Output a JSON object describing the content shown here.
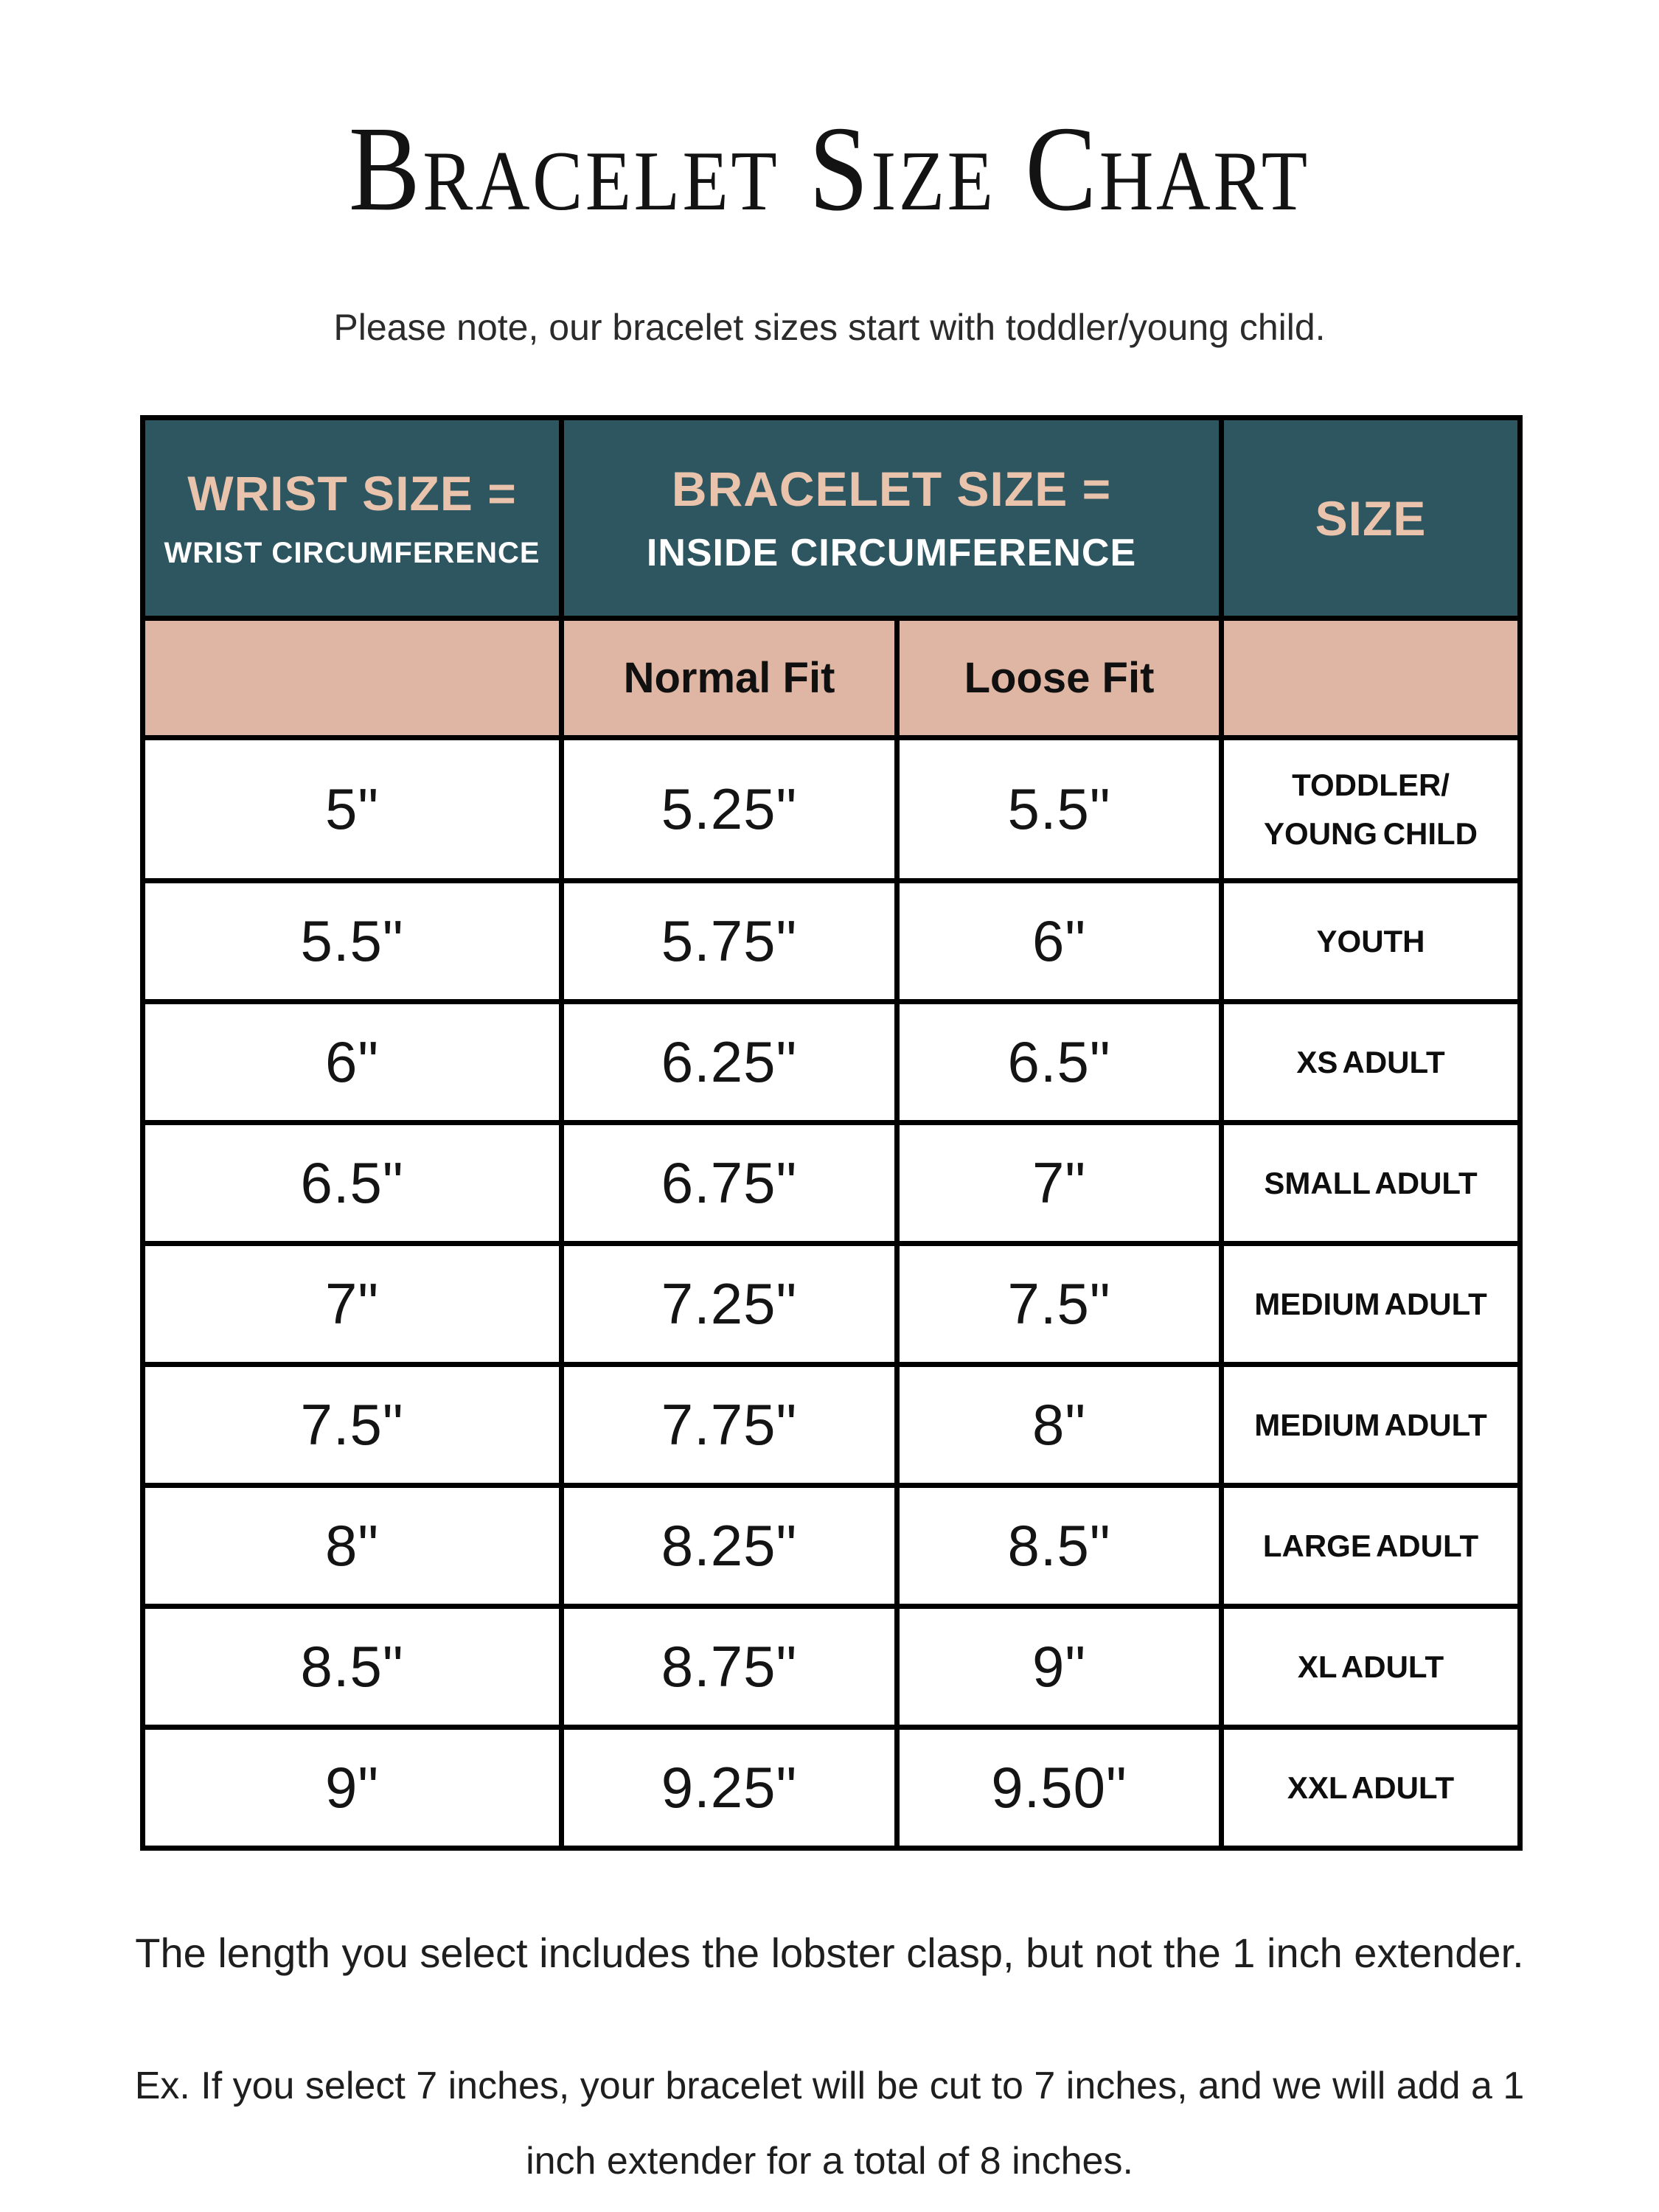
{
  "page": {
    "title": "Bracelet Size Chart",
    "subtitle": "Please note, our bracelet sizes start with toddler/young child.",
    "footnote1": "The length you select includes the lobster clasp, but not the 1 inch extender.",
    "footnote2_line1": "Ex. If you select 7 inches, your bracelet will be cut to 7 inches, and we will add a 1",
    "footnote2_line2": "inch extender for a total of 8 inches."
  },
  "colors": {
    "header_bg": "#2d5660",
    "subheader_bg": "#dfb5a3",
    "header_accent_text": "#eac3ad",
    "header_secondary_text": "#ffffff",
    "border": "#000000"
  },
  "table": {
    "header": {
      "wrist_title": "WRIST SIZE =",
      "wrist_sub": "WRIST CIRCUMFERENCE",
      "bracelet_title": "BRACELET SIZE =",
      "bracelet_sub": "INSIDE CIRCUMFERENCE",
      "size_title": "SIZE"
    },
    "subheader": {
      "normal_fit": "Normal Fit",
      "loose_fit": "Loose Fit"
    },
    "rows": [
      {
        "wrist": "5\"",
        "normal_fit": "5.25\"",
        "loose_fit": "5.5\"",
        "size": [
          "TODDLER/",
          "YOUNG CHILD"
        ]
      },
      {
        "wrist": "5.5\"",
        "normal_fit": "5.75\"",
        "loose_fit": "6\"",
        "size": [
          "YOUTH"
        ]
      },
      {
        "wrist": "6\"",
        "normal_fit": "6.25\"",
        "loose_fit": "6.5\"",
        "size": [
          "XS ADULT"
        ]
      },
      {
        "wrist": "6.5\"",
        "normal_fit": "6.75\"",
        "loose_fit": "7\"",
        "size": [
          "SMALL ADULT"
        ]
      },
      {
        "wrist": "7\"",
        "normal_fit": "7.25\"",
        "loose_fit": "7.5\"",
        "size": [
          "MEDIUM ADULT"
        ]
      },
      {
        "wrist": "7.5\"",
        "normal_fit": "7.75\"",
        "loose_fit": "8\"",
        "size": [
          "MEDIUM ADULT"
        ]
      },
      {
        "wrist": "8\"",
        "normal_fit": "8.25\"",
        "loose_fit": "8.5\"",
        "size": [
          "LARGE ADULT"
        ]
      },
      {
        "wrist": "8.5\"",
        "normal_fit": "8.75\"",
        "loose_fit": "9\"",
        "size": [
          "XL ADULT"
        ]
      },
      {
        "wrist": "9\"",
        "normal_fit": "9.25\"",
        "loose_fit": "9.50\"",
        "size": [
          "XXL ADULT"
        ]
      }
    ]
  }
}
